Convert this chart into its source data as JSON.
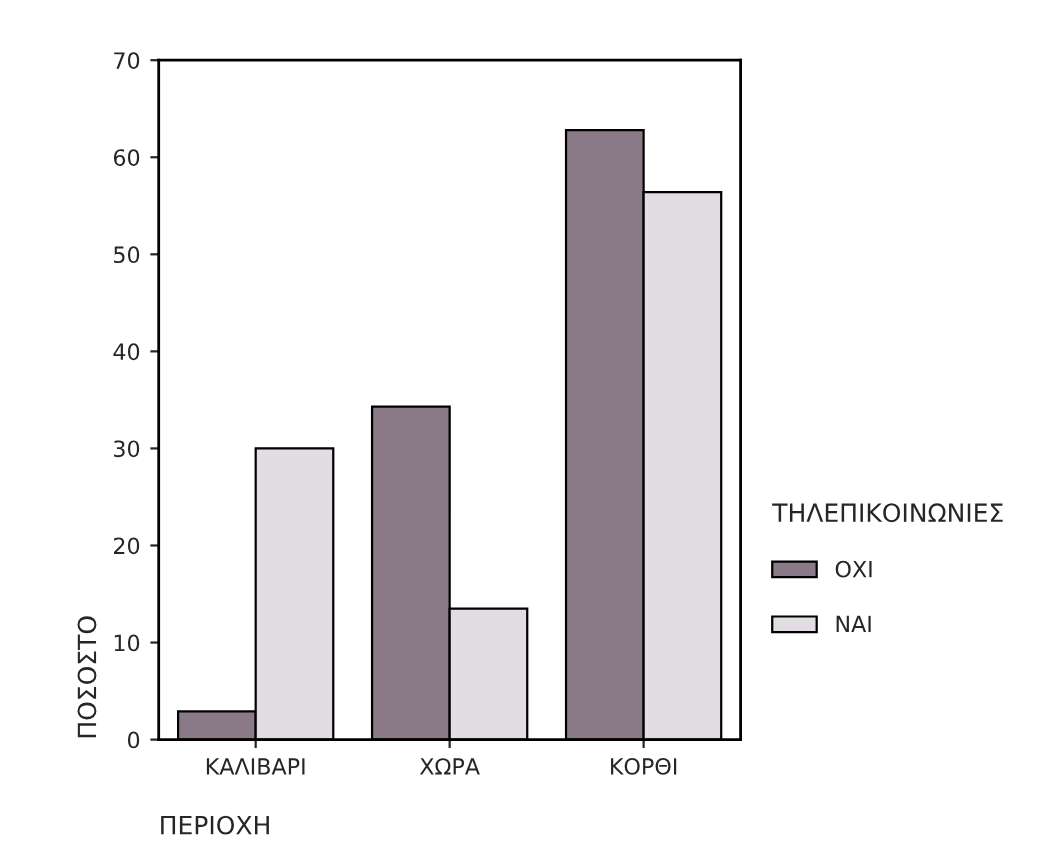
{
  "chart_data": {
    "type": "bar",
    "xlabel": "ΠΕΡΙΟΧΗ",
    "ylabel": "ΠΟΣΟΣΤΟ",
    "legend_title": "ΤΗΛΕΠΙΚΟΙΝΩΝΙΕΣ",
    "categories": [
      "ΚΑΛΙΒΑΡΙ",
      "ΧΩΡΑ",
      "ΚΟΡΘΙ"
    ],
    "series": [
      {
        "name": "ΟΧΙ",
        "color": "#8a7a88",
        "values": [
          2.9,
          34.3,
          62.8
        ]
      },
      {
        "name": "ΝΑΙ",
        "color": "#e2dde2",
        "values": [
          30.0,
          13.5,
          56.4
        ]
      }
    ],
    "ylim": [
      0,
      70
    ],
    "yticks": [
      0,
      10,
      20,
      30,
      40,
      50,
      60,
      70
    ],
    "grid": false,
    "legend": "right"
  }
}
